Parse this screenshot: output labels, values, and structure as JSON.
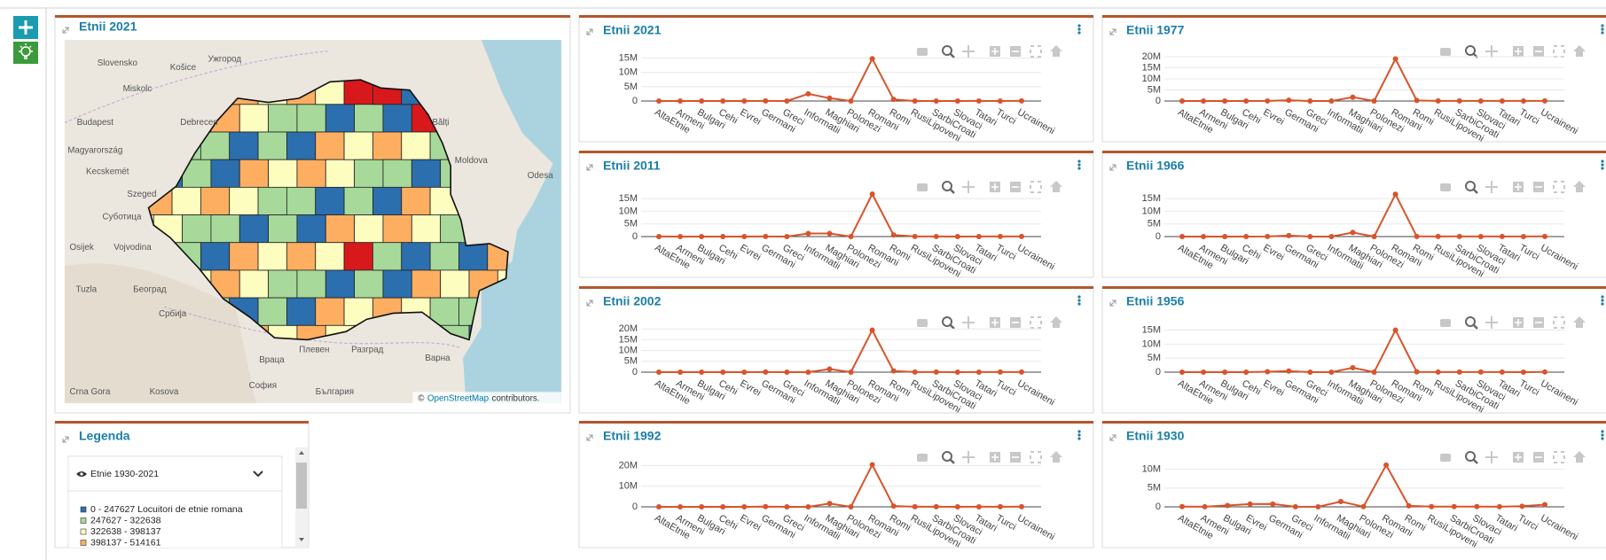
{
  "map_panel": {
    "title": "Etnii 2021",
    "places": [
      "Slovensko",
      "Košice",
      "Ужгород",
      "Miskolc",
      "Budapest",
      "Debrecen",
      "Magyarország",
      "Kecskemét",
      "Szeged",
      "Суботица",
      "Osijek",
      "Vojvodina",
      "Tuzla",
      "Београд",
      "Србија",
      "Враца",
      "Плевен",
      "Разград",
      "Варна",
      "София",
      "България",
      "Moldova",
      "Bălți",
      "Odesa",
      "Crna Gora",
      "Kosova"
    ],
    "attribution": {
      "prefix": "©",
      "link": "OpenStreetMap",
      "suffix": "contributors."
    }
  },
  "legend_panel": {
    "title": "Legenda",
    "layer": "Etnie 1930-2021",
    "items": [
      "0 - 247627 Locuitori de etnie romana",
      "247627 - 322638",
      "322638 - 398137",
      "398137 - 514161"
    ],
    "colors": [
      "#2b6fae",
      "#a6d99a",
      "#fdfdc0",
      "#fdae61"
    ]
  },
  "chart_data": [
    {
      "type": "line",
      "title": "Etnii 2021",
      "color": "#d9532b",
      "categories": [
        "AltaEtnie",
        "Armeni",
        "Bulgari",
        "Cehi",
        "Evrei",
        "Germani",
        "Greci",
        "Informatii",
        "Maghiari",
        "Polonezi",
        "Romani",
        "Romi",
        "RusiLipoveni",
        "SarbiCroati",
        "Slovaci",
        "Tatari",
        "Turci",
        "Ucraineni"
      ],
      "values": [
        10000,
        1000,
        6000,
        2000,
        2000,
        23000,
        2000,
        2500000,
        1000000,
        2000,
        14800000,
        570000,
        12000,
        12000,
        10000,
        19000,
        14000,
        46000
      ],
      "ylim": [
        0,
        15500000
      ],
      "yticks": [
        0,
        {
          "value": 5000000,
          "label": "5M"
        },
        {
          "value": 10000000,
          "label": "10M"
        },
        {
          "value": 15000000,
          "label": "15M"
        }
      ],
      "grid": true
    },
    {
      "type": "line",
      "title": "Etnii 1977",
      "color": "#d9532b",
      "categories": [
        "AltaEtnie",
        "Armeni",
        "Bulgari",
        "Cehi",
        "Evrei",
        "Germani",
        "Greci",
        "Informatii",
        "Maghiari",
        "Polonezi",
        "Romani",
        "Romi",
        "RusiLipoveni",
        "SarbiCroati",
        "Slovaci",
        "Tatari",
        "Turci",
        "Ucraineni"
      ],
      "values": [
        10000,
        2400,
        10000,
        7700,
        25000,
        360000,
        6000,
        0,
        1710000,
        5000,
        19000000,
        230000,
        32000,
        40000,
        23000,
        23000,
        23000,
        55000
      ],
      "ylim": [
        0,
        20000000
      ],
      "yticks": [
        0,
        {
          "value": 5000000,
          "label": "5M"
        },
        {
          "value": 10000000,
          "label": "10M"
        },
        {
          "value": 15000000,
          "label": "15M"
        },
        {
          "value": 20000000,
          "label": "20M"
        }
      ],
      "grid": true
    },
    {
      "type": "line",
      "title": "Etnii 2011",
      "color": "#d9532b",
      "categories": [
        "AltaEtnie",
        "Armeni",
        "Bulgari",
        "Cehi",
        "Evrei",
        "Germani",
        "Greci",
        "Informatii",
        "Maghiari",
        "Polonezi",
        "Romani",
        "Romi",
        "RusiLipoveni",
        "SarbiCroati",
        "Slovaci",
        "Tatari",
        "Turci",
        "Ucraineni"
      ],
      "values": [
        18000,
        1400,
        7300,
        2500,
        3300,
        36000,
        3700,
        1240000,
        1230000,
        2500,
        16790000,
        620000,
        23000,
        21000,
        13000,
        20000,
        27000,
        51000
      ],
      "ylim": [
        0,
        17500000
      ],
      "yticks": [
        0,
        {
          "value": 5000000,
          "label": "5M"
        },
        {
          "value": 10000000,
          "label": "10M"
        },
        {
          "value": 15000000,
          "label": "15M"
        }
      ],
      "grid": true
    },
    {
      "type": "line",
      "title": "Etnii 1966",
      "color": "#d9532b",
      "categories": [
        "AltaEtnie",
        "Armeni",
        "Bulgari",
        "Cehi",
        "Evrei",
        "Germani",
        "Greci",
        "Informatii",
        "Maghiari",
        "Polonezi",
        "Romani",
        "Romi",
        "RusiLipoveni",
        "SarbiCroati",
        "Slovaci",
        "Tatari",
        "Turci",
        "Ucraineni"
      ],
      "values": [
        10000,
        3400,
        11000,
        9000,
        43000,
        380000,
        9000,
        0,
        1620000,
        4400,
        16700000,
        64000,
        39000,
        54000,
        20000,
        22000,
        18000,
        54000
      ],
      "ylim": [
        0,
        17500000
      ],
      "yticks": [
        0,
        {
          "value": 5000000,
          "label": "5M"
        },
        {
          "value": 10000000,
          "label": "10M"
        },
        {
          "value": 15000000,
          "label": "15M"
        }
      ],
      "grid": true
    },
    {
      "type": "line",
      "title": "Etnii 2002",
      "color": "#d9532b",
      "categories": [
        "AltaEtnie",
        "Armeni",
        "Bulgari",
        "Cehi",
        "Evrei",
        "Germani",
        "Greci",
        "Informatii",
        "Maghiari",
        "Polonezi",
        "Romani",
        "Romi",
        "RusiLipoveni",
        "SarbiCroati",
        "Slovaci",
        "Tatari",
        "Turci",
        "Ucraineni"
      ],
      "values": [
        8000,
        1800,
        8000,
        3900,
        5800,
        60000,
        6500,
        1900,
        1430000,
        3600,
        19400000,
        540000,
        36000,
        28000,
        17000,
        24000,
        33000,
        61000
      ],
      "ylim": [
        0,
        20500000
      ],
      "yticks": [
        0,
        {
          "value": 5000000,
          "label": "5M"
        },
        {
          "value": 10000000,
          "label": "10M"
        },
        {
          "value": 15000000,
          "label": "15M"
        },
        {
          "value": 20000000,
          "label": "20M"
        }
      ],
      "grid": true
    },
    {
      "type": "line",
      "title": "Etnii 1956",
      "color": "#d9532b",
      "categories": [
        "AltaEtnie",
        "Armeni",
        "Bulgari",
        "Cehi",
        "Evrei",
        "Germani",
        "Greci",
        "Informatii",
        "Maghiari",
        "Polonezi",
        "Romani",
        "Romi",
        "RusiLipoveni",
        "SarbiCroati",
        "Slovaci",
        "Tatari",
        "Turci",
        "Ucraineni"
      ],
      "values": [
        14000,
        6400,
        12000,
        11000,
        146000,
        385000,
        11000,
        0,
        1590000,
        7600,
        14990000,
        104000,
        20000,
        47000,
        24000,
        20000,
        14000,
        60000
      ],
      "ylim": [
        0,
        15800000
      ],
      "yticks": [
        0,
        {
          "value": 5000000,
          "label": "5M"
        },
        {
          "value": 10000000,
          "label": "10M"
        },
        {
          "value": 15000000,
          "label": "15M"
        }
      ],
      "grid": true
    },
    {
      "type": "line",
      "title": "Etnii 1992",
      "color": "#d9532b",
      "categories": [
        "AltaEtnie",
        "Armeni",
        "Bulgari",
        "Cehi",
        "Evrei",
        "Germani",
        "Greci",
        "Informatii",
        "Maghiari",
        "Polonezi",
        "Romani",
        "Romi",
        "RusiLipoveni",
        "SarbiCroati",
        "Slovaci",
        "Tatari",
        "Turci",
        "Ucraineni"
      ],
      "values": [
        9000,
        2000,
        9800,
        5800,
        9000,
        120000,
        3900,
        700,
        1620000,
        4200,
        20400000,
        400000,
        38000,
        33000,
        20000,
        25000,
        29000,
        66000
      ],
      "ylim": [
        0,
        21500000
      ],
      "yticks": [
        0,
        {
          "value": 10000000,
          "label": "10M"
        },
        {
          "value": 20000000,
          "label": "20M"
        }
      ],
      "grid": true
    },
    {
      "type": "line",
      "title": "Etnii 1930",
      "color": "#d9532b",
      "categories": [
        "AltaEtnie",
        "Armeni",
        "Bulgari",
        "Evrei",
        "Germani",
        "Greci",
        "Informatii",
        "Maghiari",
        "Polonezi",
        "Romani",
        "Romi",
        "RusiLipoveni",
        "SarbiCroati",
        "Slovaci",
        "Tatari",
        "Turci",
        "Ucraineni"
      ],
      "values": [
        56000,
        15000,
        366000,
        728000,
        745000,
        26000,
        7000,
        1426000,
        48000,
        11120000,
        262000,
        57000,
        51000,
        51000,
        22000,
        154000,
        582000
      ],
      "ylim": [
        0,
        11800000
      ],
      "yticks": [
        0,
        {
          "value": 5000000,
          "label": "5M"
        },
        {
          "value": 10000000,
          "label": "10M"
        }
      ],
      "grid": true
    }
  ]
}
